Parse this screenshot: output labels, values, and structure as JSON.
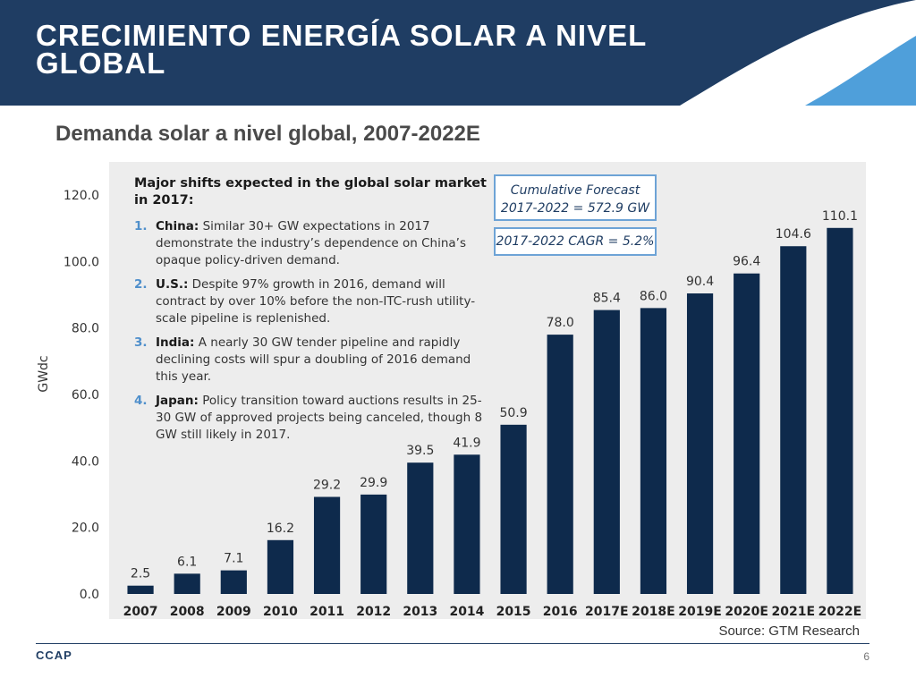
{
  "header": {
    "title": "CRECIMIENTO ENERGÍA SOLAR A NIVEL GLOBAL",
    "subtitle": "Demanda solar a nivel global, 2007-2022E"
  },
  "colors": {
    "header_bg": "#1f3d63",
    "bar": "#0e2a4c",
    "accent": "#4f8fcb",
    "chart_bg": "#ededed"
  },
  "chart_data": {
    "type": "bar",
    "categories": [
      "2007",
      "2008",
      "2009",
      "2010",
      "2011",
      "2012",
      "2013",
      "2014",
      "2015",
      "2016",
      "2017E",
      "2018E",
      "2019E",
      "2020E",
      "2021E",
      "2022E"
    ],
    "values": [
      2.5,
      6.1,
      7.1,
      16.2,
      29.2,
      29.9,
      39.5,
      41.9,
      50.9,
      78.0,
      85.4,
      86.0,
      90.4,
      96.4,
      104.6,
      110.1
    ],
    "value_labels": [
      "2.5",
      "6.1",
      "7.1",
      "16.2",
      "29.2",
      "29.9",
      "39.5",
      "41.9",
      "50.9",
      "78.0",
      "85.4",
      "86.0",
      "90.4",
      "96.4",
      "104.6",
      "110.1"
    ],
    "ylabel": "GWdc",
    "ylim": [
      0,
      120
    ],
    "yticks": [
      "0.0",
      "20.0",
      "40.0",
      "60.0",
      "80.0",
      "100.0",
      "120.0"
    ],
    "grid": false,
    "legend": "none"
  },
  "notes": {
    "heading": "Major shifts expected in the global solar market in 2017:",
    "items": [
      {
        "num": "1.",
        "label": "China:",
        "text": "Similar 30+ GW expectations in 2017 demonstrate the industry’s dependence on China’s opaque policy-driven demand."
      },
      {
        "num": "2.",
        "label": "U.S.:",
        "text": "Despite 97% growth in 2016, demand will contract by over 10% before the non-ITC-rush utility-scale pipeline is replenished."
      },
      {
        "num": "3.",
        "label": "India:",
        "text": "A nearly 30 GW tender pipeline and rapidly declining costs will spur a doubling of 2016 demand this year."
      },
      {
        "num": "4.",
        "label": "Japan:",
        "text": "Policy transition toward auctions results in 25-30 GW of approved projects being canceled, though 8 GW still likely in 2017."
      }
    ]
  },
  "callouts": {
    "cumulative_line1": "Cumulative Forecast",
    "cumulative_line2": "2017-2022 = 572.9 GW",
    "cagr": "2017-2022 CAGR = 5.2%"
  },
  "footer": {
    "source": "Source: GTM Research",
    "logo": "CCAP",
    "page": "6"
  }
}
